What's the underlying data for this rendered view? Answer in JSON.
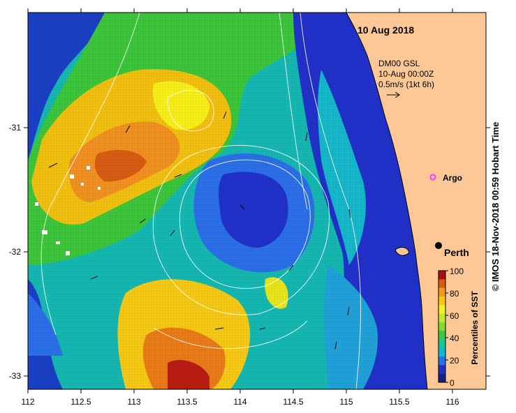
{
  "map": {
    "date_label": "10 Aug 2018",
    "current_source": "DM00 GSL",
    "current_time": "10-Aug 00:00Z",
    "vector_scale": "0.5m/s (1kt 6h)",
    "x_ticks": [
      "112",
      "112.5",
      "113",
      "113.5",
      "114",
      "114.5",
      "115",
      "115.5",
      "116"
    ],
    "y_ticks": [
      "-31",
      "-32",
      "-33"
    ],
    "places": [
      {
        "name": "Argo",
        "color": "#ff33ff"
      },
      {
        "name": "Perth",
        "color": "#000000"
      }
    ],
    "land_color": "#fdc896"
  },
  "colorbar": {
    "title": "Percentiles of SST",
    "ticks": [
      "100",
      "80",
      "60",
      "40",
      "20",
      "0"
    ],
    "colors": [
      "#1b1e8a",
      "#2030c8",
      "#2a6ee8",
      "#10b6d8",
      "#15c89a",
      "#3ec83e",
      "#86d83a",
      "#c8e630",
      "#f4f21c",
      "#f8c810",
      "#f29a1c",
      "#dc5a12",
      "#a81010"
    ]
  },
  "credit": "© IMOS 18-Nov-2018 00:59 Hobart Time"
}
